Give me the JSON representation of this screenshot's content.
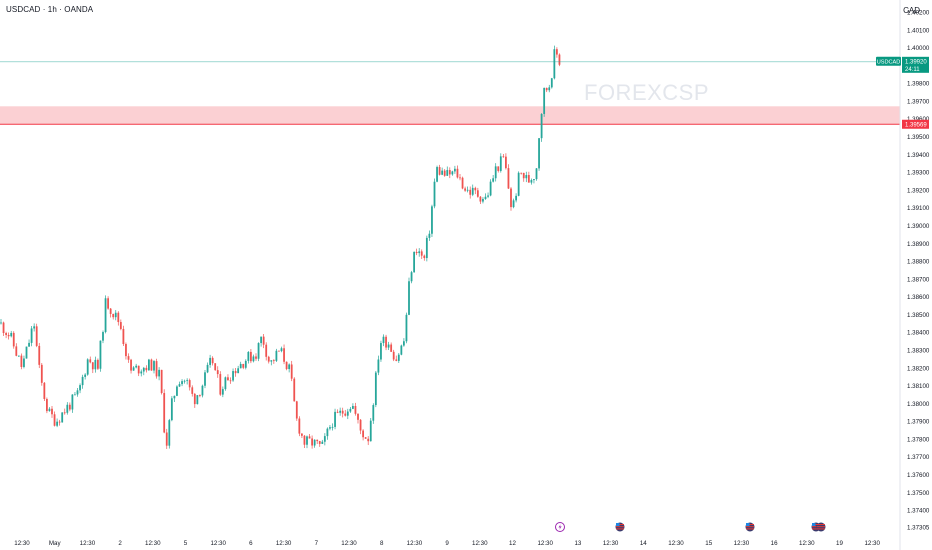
{
  "header": {
    "symbol": "USDCAD · 1h · OANDA",
    "currency": "CAD"
  },
  "watermark": "FOREXCSP",
  "colors": {
    "up": "#26a69a",
    "down": "#ef5350",
    "zone_fill": "#fbd0d3",
    "zone_line": "#f23645",
    "price_line": "#26a69a",
    "price_badge": "#089981",
    "level_badge": "#f23645",
    "axis_text": "#131722",
    "border": "#e0e3eb"
  },
  "price_badge": {
    "label": "USDCAD",
    "price": "1.39920",
    "countdown": "24:11"
  },
  "level_badge": {
    "price": "1.39569"
  },
  "events": [
    {
      "icon": "lightning-icon",
      "date_label": "12:30"
    },
    {
      "icon": "us-flag-icon",
      "date_label": "12:30"
    },
    {
      "icon": "us-flag-icon",
      "date_label": "12:30"
    },
    {
      "icon": "us-flag-icon",
      "date_label": "12:30"
    }
  ],
  "chart_data": {
    "type": "candlestick",
    "symbol": "USDCAD",
    "timeframe": "1h",
    "ylim": [
      1.37305,
      1.402
    ],
    "y_ticks": [
      "1.40200",
      "1.40100",
      "1.40000",
      "1.39920",
      "1.39800",
      "1.39700",
      "1.39600",
      "1.39569",
      "1.39500",
      "1.39400",
      "1.39300",
      "1.39200",
      "1.39100",
      "1.39000",
      "1.38900",
      "1.38800",
      "1.38700",
      "1.38600",
      "1.38500",
      "1.38400",
      "1.38300",
      "1.38200",
      "1.38100",
      "1.38000",
      "1.37900",
      "1.37800",
      "1.37700",
      "1.37600",
      "1.37500",
      "1.37400",
      "1.37305"
    ],
    "x_ticks": [
      "12:30",
      "May",
      "12:30",
      "2",
      "12:30",
      "5",
      "12:30",
      "6",
      "12:30",
      "7",
      "12:30",
      "8",
      "12:30",
      "9",
      "12:30",
      "12",
      "12:30",
      "13",
      "12:30",
      "14",
      "12:30",
      "15",
      "12:30",
      "16",
      "12:30",
      "19",
      "12:30"
    ],
    "zone": {
      "top": 1.3967,
      "bottom": 1.39569
    },
    "last_price": 1.3992,
    "grid": false,
    "path": [
      [
        0,
        1.3845
      ],
      [
        10,
        1.3838
      ],
      [
        22,
        1.382
      ],
      [
        34,
        1.3845
      ],
      [
        40,
        1.3815
      ],
      [
        48,
        1.3795
      ],
      [
        56,
        1.379
      ],
      [
        66,
        1.3797
      ],
      [
        78,
        1.3805
      ],
      [
        88,
        1.3825
      ],
      [
        98,
        1.382
      ],
      [
        106,
        1.3858
      ],
      [
        112,
        1.3852
      ],
      [
        120,
        1.3845
      ],
      [
        130,
        1.3818
      ],
      [
        140,
        1.382
      ],
      [
        152,
        1.3822
      ],
      [
        160,
        1.3815
      ],
      [
        166,
        1.3775
      ],
      [
        172,
        1.38
      ],
      [
        178,
        1.3814
      ],
      [
        186,
        1.3813
      ],
      [
        194,
        1.3802
      ],
      [
        202,
        1.381
      ],
      [
        212,
        1.3825
      ],
      [
        220,
        1.3808
      ],
      [
        228,
        1.3815
      ],
      [
        236,
        1.382
      ],
      [
        246,
        1.3825
      ],
      [
        256,
        1.3828
      ],
      [
        262,
        1.3838
      ],
      [
        270,
        1.3822
      ],
      [
        280,
        1.383
      ],
      [
        290,
        1.3818
      ],
      [
        296,
        1.3792
      ],
      [
        304,
        1.3778
      ],
      [
        312,
        1.3778
      ],
      [
        322,
        1.3775
      ],
      [
        332,
        1.379
      ],
      [
        342,
        1.3795
      ],
      [
        352,
        1.38
      ],
      [
        360,
        1.3785
      ],
      [
        368,
        1.378
      ],
      [
        374,
        1.3805
      ],
      [
        380,
        1.3835
      ],
      [
        388,
        1.3835
      ],
      [
        396,
        1.3825
      ],
      [
        404,
        1.3835
      ],
      [
        410,
        1.3872
      ],
      [
        416,
        1.3888
      ],
      [
        424,
        1.388
      ],
      [
        430,
        1.39
      ],
      [
        436,
        1.3932
      ],
      [
        446,
        1.3928
      ],
      [
        456,
        1.393
      ],
      [
        466,
        1.392
      ],
      [
        476,
        1.3918
      ],
      [
        486,
        1.3915
      ],
      [
        496,
        1.3932
      ],
      [
        504,
        1.3938
      ],
      [
        512,
        1.3908
      ],
      [
        520,
        1.393
      ],
      [
        528,
        1.3925
      ],
      [
        536,
        1.393
      ],
      [
        540,
        1.3958
      ],
      [
        544,
        1.3975
      ],
      [
        550,
        1.398
      ],
      [
        555,
        1.3998
      ],
      [
        560,
        1.3992
      ]
    ]
  }
}
